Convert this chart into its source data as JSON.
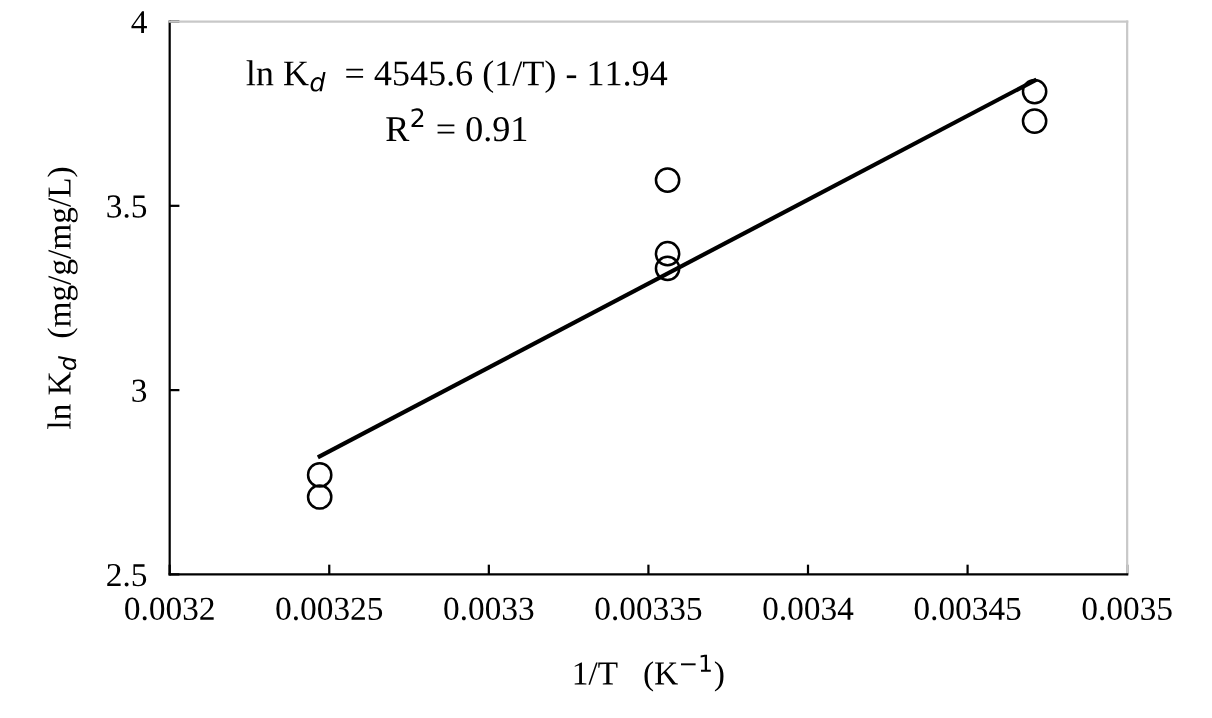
{
  "chart_data": {
    "type": "scatter",
    "xlabel": "1/T   (K$^{−1}$)",
    "ylabel": "ln K$_{d}$  (mg/g/mg/L)",
    "xlim": [
      0.0032,
      0.0035
    ],
    "xticks": [
      0.0032,
      0.00325,
      0.0033,
      0.00335,
      0.0034,
      0.00345,
      0.0035
    ],
    "ylim": [
      2.5,
      4
    ],
    "yticks": [
      2.5,
      3,
      3.5,
      4
    ],
    "grid": false,
    "legend": false,
    "series": [
      {
        "marker": "circle",
        "color": "#000000",
        "x": [
          0.003247,
          0.003247,
          0.003356,
          0.003356,
          0.003356,
          0.003471,
          0.003471
        ],
        "values": [
          2.77,
          2.71,
          3.57,
          3.37,
          3.33,
          3.81,
          3.73
        ]
      },
      {
        "type": "line",
        "color": "#000000",
        "x": [
          0.003247,
          0.003471
        ],
        "values": [
          2.82,
          3.84
        ],
        "marker": "none"
      }
    ],
    "annotations": [
      "ln K$_{d}$  = 4545.6 (1/T) - 11.94",
      "R$^{2}$ = 0.91"
    ]
  }
}
